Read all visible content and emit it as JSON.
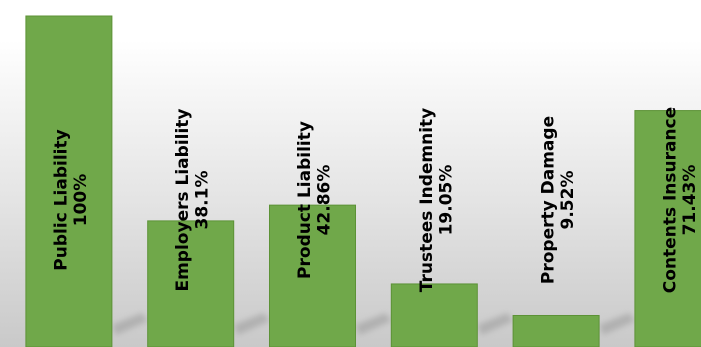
{
  "colors": {
    "bar": "#70a84a",
    "bar_edge": "#5c9236",
    "shadow": "#9a9a9a",
    "label": "#000000"
  },
  "chart_data": {
    "type": "bar",
    "title": "",
    "xlabel": "",
    "ylabel": "",
    "ylim": [
      0,
      100
    ],
    "grid": false,
    "legend": "none",
    "categories": [
      "Public Liability",
      "Employers Liability",
      "Product Liability",
      "Trustees Indemnity",
      "Property Damage",
      "Contents Insurance"
    ],
    "values": [
      100,
      38.1,
      42.86,
      19.05,
      9.52,
      71.43
    ],
    "data_labels": [
      "100%",
      "38.1%",
      "42.86%",
      "19.05%",
      "9.52%",
      "71.43%"
    ]
  }
}
